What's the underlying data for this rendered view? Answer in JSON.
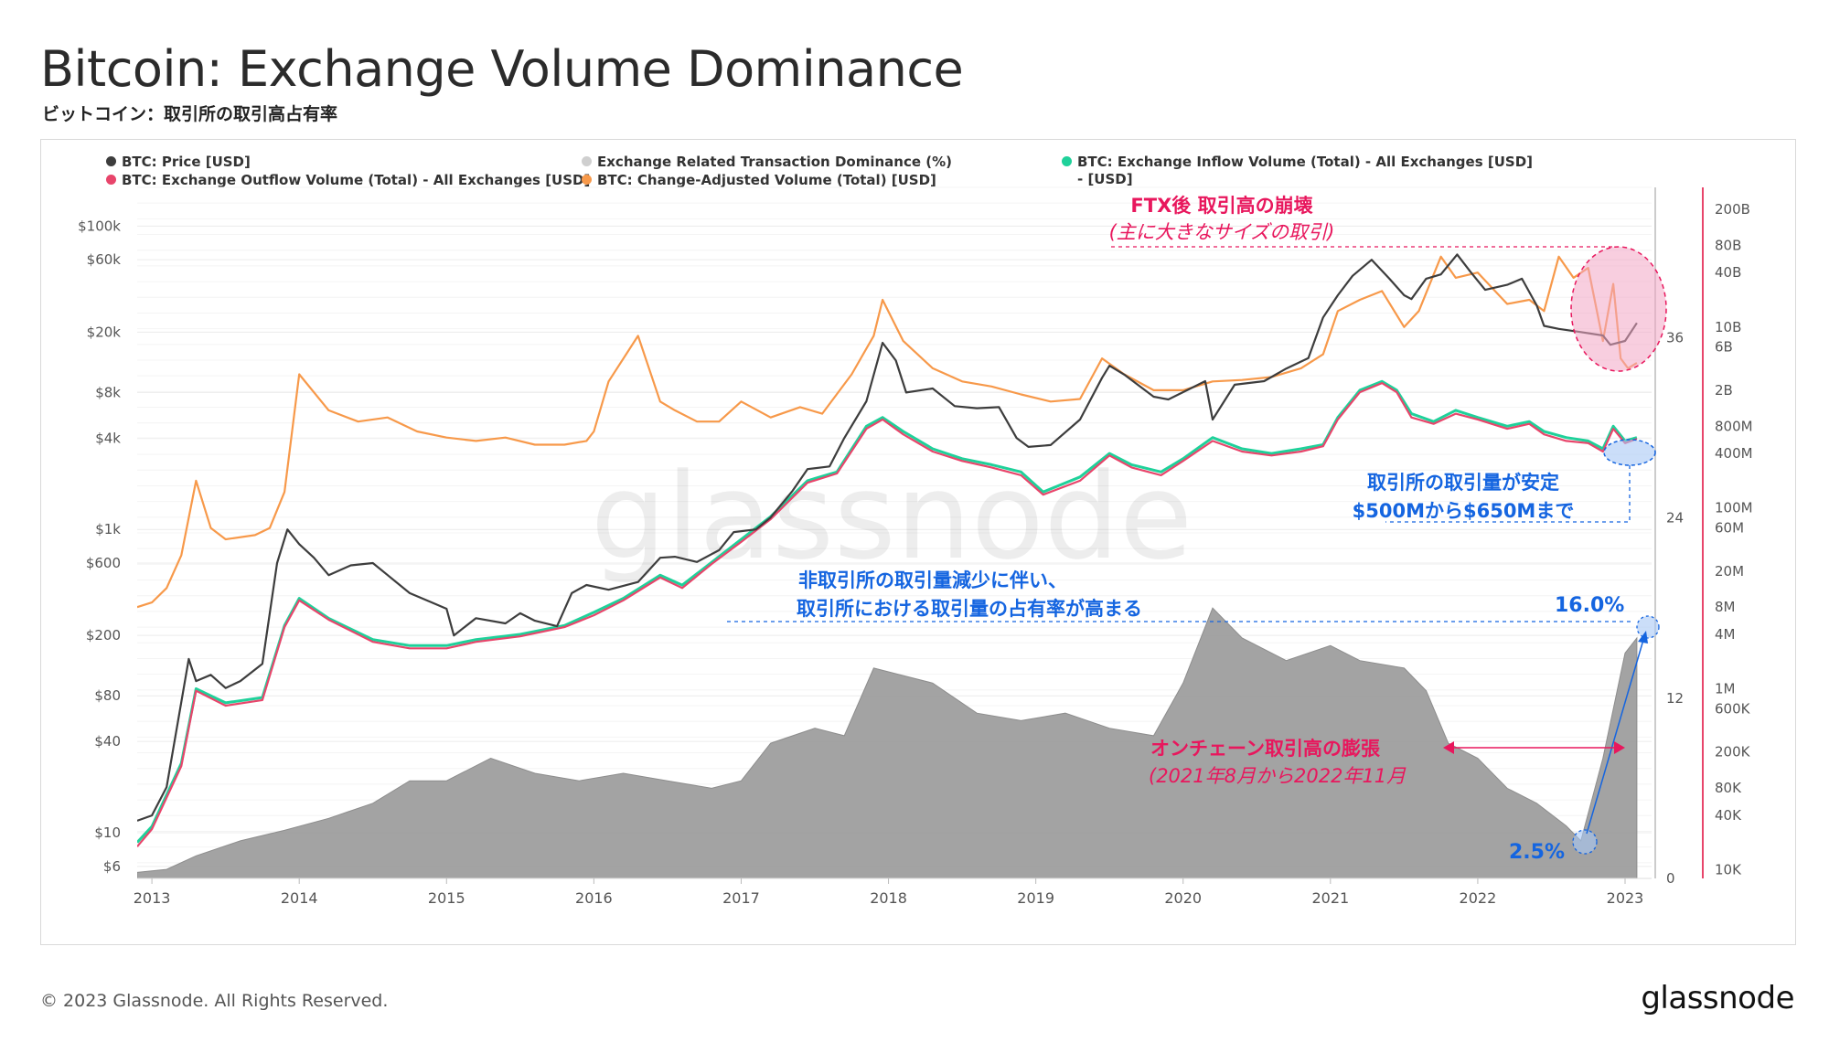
{
  "header": {
    "title": "Bitcoin: Exchange Volume Dominance",
    "subtitle": "ビットコイン：取引所の取引高占有率"
  },
  "footer": {
    "copyright": "© 2023 Glassnode. All Rights Reserved.",
    "logo": "glassnode"
  },
  "watermark": "glassnode",
  "colors": {
    "price": "#3d3d3d",
    "dominance": "#9e9e9e",
    "inflow": "#1fd19a",
    "outflow": "#e8456b",
    "adjusted": "#f7994a",
    "annotation_red": "#e8175d",
    "annotation_blue": "#1565e0"
  },
  "legend": [
    {
      "label": "BTC: Price [USD]",
      "color": "#3d3d3d"
    },
    {
      "label": "Exchange Related Transaction Dominance (%)",
      "color": "#cfcfcf"
    },
    {
      "label": "BTC: Exchange Inflow Volume (Total) - All Exchanges [USD]",
      "color": "#1fd19a",
      "label2": "- [USD]"
    },
    {
      "label": "BTC: Exchange Outflow Volume (Total) - All Exchanges [USD]",
      "color": "#e8456b"
    },
    {
      "label": "BTC: Change-Adjusted Volume (Total) [USD]",
      "color": "#f7994a"
    }
  ],
  "annotations": {
    "ftx_title": "FTX後 取引高の崩壊",
    "ftx_sub": "(主に大きなサイズの取引)",
    "stable_1": "取引所の取引量が安定",
    "stable_2": "$500Mから$650Mまで",
    "share_1": "非取引所の取引量減少に伴い、",
    "share_2": "取引所における取引量の占有率が高まる",
    "pct_high": "16.0%",
    "pct_low": "2.5%",
    "expansion_title": "オンチェーン取引高の膨張",
    "expansion_sub": "(2021年8月から2022年11月"
  },
  "chart_data": {
    "type": "line",
    "title": "Bitcoin: Exchange Volume Dominance",
    "x_axis": {
      "ticks": [
        "2013",
        "2014",
        "2015",
        "2016",
        "2017",
        "2018",
        "2019",
        "2020",
        "2021",
        "2022",
        "2023"
      ]
    },
    "y_left": {
      "label": "",
      "scale": "log",
      "ticks": [
        "$100k",
        "$60k",
        "$20k",
        "$8k",
        "$4k",
        "$1k",
        "$600",
        "$200",
        "$80",
        "$40",
        "$10",
        "$6"
      ],
      "tick_values": [
        100000,
        60000,
        20000,
        8000,
        4000,
        1000,
        600,
        200,
        80,
        40,
        10,
        6
      ]
    },
    "y_mid": {
      "label": "",
      "scale": "linear",
      "ticks": [
        "36",
        "24",
        "12",
        "0"
      ],
      "tick_values": [
        36,
        24,
        12,
        0
      ]
    },
    "y_right": {
      "label": "",
      "scale": "log",
      "ticks": [
        "200B",
        "80B",
        "40B",
        "10B",
        "6B",
        "2B",
        "800M",
        "400M",
        "100M",
        "60M",
        "20M",
        "8M",
        "4M",
        "1M",
        "600K",
        "200K",
        "80K",
        "40K",
        "10K"
      ],
      "tick_values": [
        200000000000.0,
        80000000000.0,
        40000000000.0,
        10000000000.0,
        6000000000.0,
        2000000000.0,
        800000000.0,
        400000000.0,
        100000000.0,
        60000000.0,
        20000000.0,
        8000000.0,
        4000000.0,
        1000000.0,
        600000.0,
        200000.0,
        80000.0,
        40000.0,
        10000.0
      ]
    },
    "grid": true,
    "legend_position": "top",
    "series": [
      {
        "name": "BTC: Price [USD]",
        "axis": "left",
        "x": [
          2012.9,
          2013.0,
          2013.1,
          2013.25,
          2013.3,
          2013.4,
          2013.5,
          2013.6,
          2013.75,
          2013.85,
          2013.92,
          2014.0,
          2014.1,
          2014.2,
          2014.35,
          2014.5,
          2014.6,
          2014.75,
          2014.9,
          2015.0,
          2015.05,
          2015.2,
          2015.4,
          2015.5,
          2015.6,
          2015.75,
          2015.85,
          2015.95,
          2016.1,
          2016.3,
          2016.45,
          2016.55,
          2016.7,
          2016.85,
          2016.95,
          2017.1,
          2017.2,
          2017.35,
          2017.45,
          2017.6,
          2017.7,
          2017.85,
          2017.96,
          2018.05,
          2018.12,
          2018.3,
          2018.45,
          2018.6,
          2018.75,
          2018.87,
          2018.95,
          2019.1,
          2019.3,
          2019.45,
          2019.5,
          2019.6,
          2019.8,
          2019.9,
          2020.05,
          2020.15,
          2020.2,
          2020.35,
          2020.55,
          2020.7,
          2020.85,
          2020.95,
          2021.05,
          2021.15,
          2021.28,
          2021.4,
          2021.5,
          2021.55,
          2021.65,
          2021.75,
          2021.86,
          2021.95,
          2022.05,
          2022.2,
          2022.3,
          2022.4,
          2022.45,
          2022.55,
          2022.7,
          2022.85,
          2022.9,
          2023.0,
          2023.08
        ],
        "values": [
          12,
          13,
          20,
          140,
          100,
          110,
          90,
          100,
          130,
          600,
          1000,
          800,
          650,
          500,
          580,
          600,
          500,
          380,
          330,
          300,
          200,
          260,
          240,
          280,
          250,
          230,
          380,
          430,
          400,
          450,
          650,
          660,
          610,
          730,
          960,
          1000,
          1200,
          1800,
          2500,
          2600,
          4000,
          7000,
          17000,
          13000,
          8000,
          8500,
          6500,
          6300,
          6400,
          4000,
          3500,
          3600,
          5300,
          10000,
          12000,
          10500,
          7500,
          7200,
          8500,
          9500,
          5300,
          9000,
          9500,
          11500,
          13500,
          25000,
          35000,
          47000,
          60000,
          45000,
          35000,
          33000,
          45000,
          48000,
          65000,
          50000,
          38000,
          41000,
          45000,
          30000,
          22000,
          21000,
          20000,
          19000,
          16500,
          17500,
          23000
        ]
      },
      {
        "name": "Exchange Related Transaction Dominance (%)",
        "axis": "mid",
        "x": [
          2012.9,
          2013.1,
          2013.3,
          2013.6,
          2013.9,
          2014.2,
          2014.5,
          2014.75,
          2015.0,
          2015.3,
          2015.6,
          2015.9,
          2016.2,
          2016.5,
          2016.8,
          2017.0,
          2017.2,
          2017.5,
          2017.7,
          2017.9,
          2018.1,
          2018.3,
          2018.6,
          2018.9,
          2019.2,
          2019.5,
          2019.8,
          2020.0,
          2020.2,
          2020.4,
          2020.7,
          2021.0,
          2021.2,
          2021.5,
          2021.65,
          2021.8,
          2022.0,
          2022.2,
          2022.4,
          2022.6,
          2022.7,
          2022.85,
          2023.0,
          2023.08
        ],
        "values": [
          0.4,
          0.6,
          1.5,
          2.5,
          3.2,
          4.0,
          5.0,
          6.5,
          6.5,
          8.0,
          7.0,
          6.5,
          7.0,
          6.5,
          6.0,
          6.5,
          9.0,
          10.0,
          9.5,
          14.0,
          13.5,
          13.0,
          11.0,
          10.5,
          11.0,
          10.0,
          9.5,
          13.0,
          18.0,
          16.0,
          14.5,
          15.5,
          14.5,
          14.0,
          12.5,
          9.0,
          8.0,
          6.0,
          5.0,
          3.5,
          2.5,
          8.0,
          15.0,
          16.0
        ]
      },
      {
        "name": "BTC: Exchange Inflow Volume (Total) - All Exchanges [USD]",
        "axis": "right",
        "x": [
          2012.9,
          2013.0,
          2013.2,
          2013.3,
          2013.5,
          2013.75,
          2013.9,
          2014.0,
          2014.2,
          2014.5,
          2014.75,
          2015.0,
          2015.2,
          2015.5,
          2015.8,
          2016.0,
          2016.2,
          2016.45,
          2016.6,
          2016.8,
          2017.0,
          2017.2,
          2017.45,
          2017.65,
          2017.85,
          2017.96,
          2018.1,
          2018.3,
          2018.5,
          2018.7,
          2018.9,
          2019.05,
          2019.3,
          2019.5,
          2019.65,
          2019.85,
          2020.0,
          2020.2,
          2020.4,
          2020.6,
          2020.8,
          2020.95,
          2021.05,
          2021.2,
          2021.35,
          2021.45,
          2021.55,
          2021.7,
          2021.85,
          2022.0,
          2022.2,
          2022.35,
          2022.45,
          2022.6,
          2022.75,
          2022.85,
          2022.92,
          2023.0,
          2023.08
        ],
        "values": [
          20000,
          30000,
          150000,
          1000000,
          700000,
          800000,
          5000000,
          10000000,
          6000000,
          3500000,
          3000000,
          3000000,
          3500000,
          4000000,
          5000000,
          7000000,
          10000000,
          18000000,
          14000000,
          25000000,
          45000000,
          80000000,
          200000000,
          250000000,
          800000000,
          1000000000,
          700000000,
          450000000,
          350000000,
          300000000,
          250000000,
          150000000,
          220000000,
          400000000,
          300000000,
          250000000,
          350000000,
          600000000,
          450000000,
          400000000,
          450000000,
          500000000,
          1000000000,
          2000000000,
          2500000000,
          2000000000,
          1100000000,
          900000000,
          1200000000,
          1000000000,
          800000000,
          900000000,
          700000000,
          600000000,
          550000000,
          450000000,
          800000000,
          550000000,
          600000000
        ]
      },
      {
        "name": "BTC: Exchange Outflow Volume (Total) - All Exchanges [USD]",
        "axis": "right",
        "x": [
          2012.9,
          2013.0,
          2013.2,
          2013.3,
          2013.5,
          2013.75,
          2013.9,
          2014.0,
          2014.2,
          2014.5,
          2014.75,
          2015.0,
          2015.2,
          2015.5,
          2015.8,
          2016.0,
          2016.2,
          2016.45,
          2016.6,
          2016.8,
          2017.0,
          2017.2,
          2017.45,
          2017.65,
          2017.85,
          2017.96,
          2018.1,
          2018.3,
          2018.5,
          2018.7,
          2018.9,
          2019.05,
          2019.3,
          2019.5,
          2019.65,
          2019.85,
          2020.0,
          2020.2,
          2020.4,
          2020.6,
          2020.8,
          2020.95,
          2021.05,
          2021.2,
          2021.35,
          2021.45,
          2021.55,
          2021.7,
          2021.85,
          2022.0,
          2022.2,
          2022.35,
          2022.45,
          2022.6,
          2022.75,
          2022.85,
          2022.92,
          2023.0,
          2023.08
        ],
        "values": [
          18000,
          28000,
          140000,
          950000,
          650000,
          750000,
          4800000,
          9500000,
          5800000,
          3300000,
          2800000,
          2800000,
          3300000,
          3800000,
          4800000,
          6500000,
          9500000,
          17000000,
          13000000,
          24000000,
          42000000,
          75000000,
          190000000,
          240000000,
          750000000,
          950000000,
          650000000,
          420000000,
          330000000,
          280000000,
          230000000,
          140000000,
          200000000,
          380000000,
          280000000,
          230000000,
          330000000,
          550000000,
          420000000,
          380000000,
          420000000,
          480000000,
          950000000,
          1900000000,
          2400000000,
          1900000000,
          1000000000,
          850000000,
          1100000000,
          950000000,
          750000000,
          850000000,
          650000000,
          550000000,
          520000000,
          420000000,
          750000000,
          520000000,
          580000000
        ]
      },
      {
        "name": "BTC: Change-Adjusted Volume (Total) [USD]",
        "axis": "right",
        "x": [
          2012.9,
          2013.0,
          2013.1,
          2013.2,
          2013.3,
          2013.4,
          2013.5,
          2013.7,
          2013.8,
          2013.9,
          2014.0,
          2014.2,
          2014.4,
          2014.6,
          2014.8,
          2015.0,
          2015.2,
          2015.4,
          2015.6,
          2015.8,
          2015.95,
          2016.0,
          2016.1,
          2016.3,
          2016.45,
          2016.55,
          2016.7,
          2016.85,
          2017.0,
          2017.2,
          2017.4,
          2017.55,
          2017.75,
          2017.9,
          2017.96,
          2018.1,
          2018.3,
          2018.5,
          2018.7,
          2018.9,
          2019.1,
          2019.3,
          2019.45,
          2019.6,
          2019.8,
          2020.0,
          2020.2,
          2020.4,
          2020.6,
          2020.8,
          2020.95,
          2021.05,
          2021.2,
          2021.35,
          2021.5,
          2021.6,
          2021.75,
          2021.85,
          2022.0,
          2022.2,
          2022.35,
          2022.45,
          2022.55,
          2022.65,
          2022.75,
          2022.85,
          2022.92,
          2022.97,
          2023.02,
          2023.08
        ],
        "values": [
          8000000,
          9000000,
          13000000,
          30000000,
          200000000,
          60000000,
          45000000,
          50000000,
          60000000,
          150000000,
          3000000000,
          1200000000,
          900000000,
          1000000000,
          700000000,
          600000000,
          550000000,
          600000000,
          500000000,
          500000000,
          550000000,
          700000000,
          2500000000,
          8000000000,
          1500000000,
          1200000000,
          900000000,
          900000000,
          1500000000,
          1000000000,
          1300000000,
          1100000000,
          3000000000,
          8000000000,
          20000000000,
          7000000000,
          3500000000,
          2500000000,
          2200000000,
          1800000000,
          1500000000,
          1600000000,
          4500000000,
          3000000000,
          2000000000,
          2000000000,
          2500000000,
          2600000000,
          2800000000,
          3500000000,
          5000000000,
          15000000000,
          20000000000,
          25000000000,
          10000000000,
          15000000000,
          60000000000,
          35000000000,
          40000000000,
          18000000000,
          20000000000,
          15000000000,
          60000000000,
          35000000000,
          45000000000,
          7000000000,
          30000000000,
          4500000000,
          3500000000,
          4000000000
        ]
      }
    ]
  }
}
